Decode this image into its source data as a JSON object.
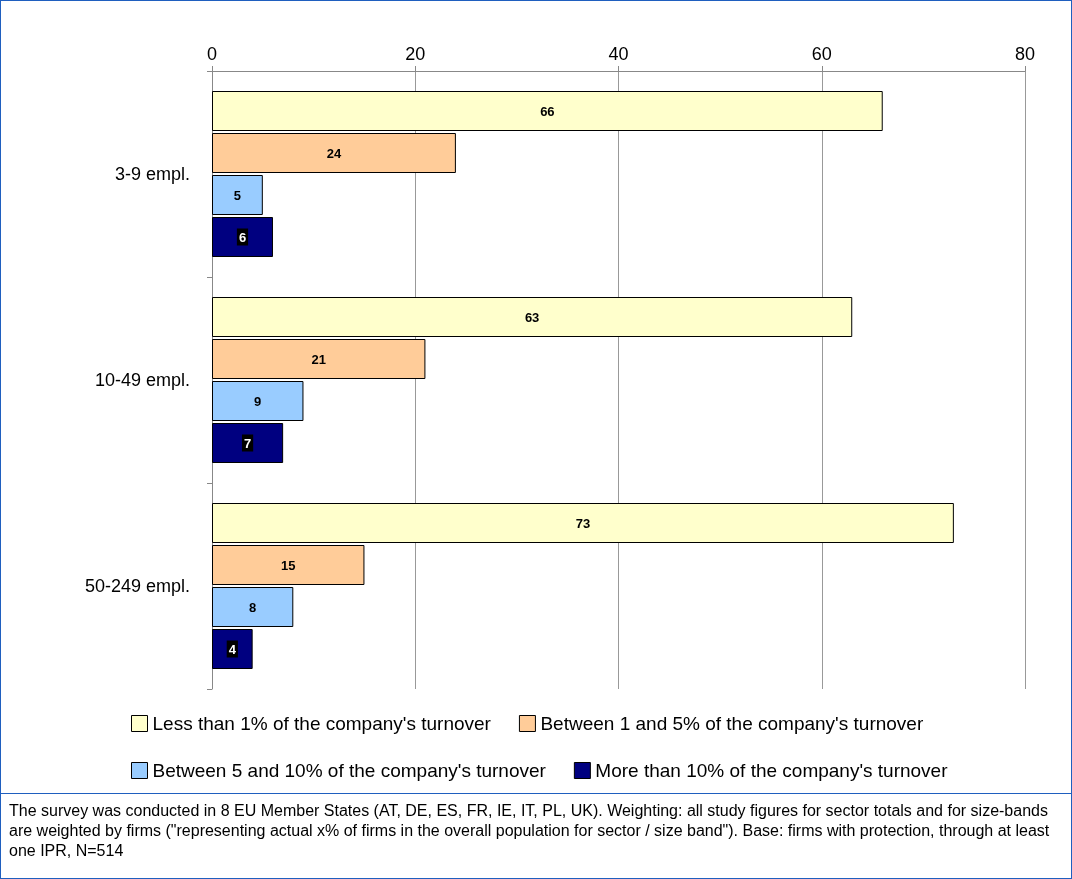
{
  "chart_data": {
    "type": "bar",
    "orientation": "horizontal",
    "categories": [
      "3-9 empl.",
      "10-49 empl.",
      "50-249 empl."
    ],
    "series": [
      {
        "name": "Less than 1% of the company's turnover",
        "color": "#ffffcc",
        "values": [
          66,
          63,
          73
        ]
      },
      {
        "name": "Between 1 and 5% of the company's turnover",
        "color": "#ffcc99",
        "values": [
          24,
          21,
          15
        ]
      },
      {
        "name": "Between 5 and 10% of the company's turnover",
        "color": "#99ccff",
        "values": [
          5,
          9,
          8
        ]
      },
      {
        "name": "More than 10% of the company's turnover",
        "color": "#000080",
        "values": [
          6,
          7,
          4
        ]
      }
    ],
    "xlim": [
      0,
      80
    ],
    "xticks": [
      0,
      20,
      40,
      60,
      80
    ],
    "grid": "x",
    "legend": "bottom",
    "data_labels": true,
    "annotations": [
      "The survey was conducted in 8 EU Member States (AT, DE, ES, FR, IE, IT, PL, UK). Weighting: all study figures for sector totals and for size-bands are weighted by firms (\"representing actual x% of firms in the overall population for sector / size band\"). Base: firms with protection, through at least one IPR, N=514"
    ]
  }
}
